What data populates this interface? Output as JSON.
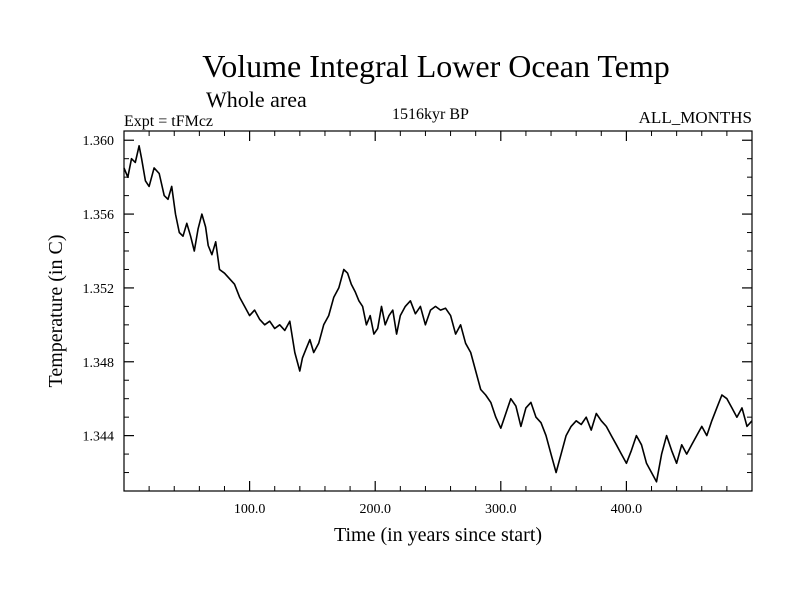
{
  "chart_data": {
    "type": "line",
    "title": "Volume Integral Lower Ocean Temp",
    "subtitle": "Whole area",
    "experiment_label": "Expt = tFMcz",
    "center_label": "1516kyr BP",
    "right_label": "ALL_MONTHS",
    "xlabel": "Time (in years since start)",
    "ylabel": "Temperature (in C)",
    "xlim": [
      0,
      500
    ],
    "ylim": [
      1.341,
      1.3605
    ],
    "x_ticks": [
      {
        "value": 100,
        "label": "100.0"
      },
      {
        "value": 200,
        "label": "200.0"
      },
      {
        "value": 300,
        "label": "300.0"
      },
      {
        "value": 400,
        "label": "400.0"
      }
    ],
    "y_ticks": [
      {
        "value": 1.36,
        "label": "1.360"
      },
      {
        "value": 1.356,
        "label": "1.356"
      },
      {
        "value": 1.352,
        "label": "1.352"
      },
      {
        "value": 1.348,
        "label": "1.348"
      },
      {
        "value": 1.344,
        "label": "1.344"
      }
    ],
    "x_minor_step": 20,
    "y_minor_step": 0.001,
    "grid": false,
    "series": [
      {
        "name": "Volume Integral Lower Ocean Temp",
        "x": [
          0,
          3,
          6,
          9,
          12,
          14,
          17,
          20,
          24,
          28,
          32,
          35,
          38,
          41,
          44,
          47,
          50,
          53,
          56,
          59,
          62,
          65,
          67,
          70,
          73,
          76,
          80,
          84,
          88,
          92,
          96,
          100,
          104,
          108,
          112,
          116,
          120,
          124,
          128,
          132,
          136,
          140,
          142,
          145,
          148,
          151,
          155,
          159,
          163,
          167,
          171,
          175,
          178,
          181,
          184,
          187,
          190,
          193,
          196,
          199,
          202,
          205,
          208,
          211,
          214,
          217,
          220,
          224,
          228,
          232,
          236,
          240,
          244,
          248,
          252,
          256,
          260,
          264,
          268,
          272,
          276,
          280,
          284,
          288,
          292,
          296,
          300,
          304,
          308,
          312,
          316,
          320,
          324,
          328,
          332,
          336,
          340,
          344,
          348,
          352,
          356,
          360,
          364,
          368,
          372,
          376,
          380,
          384,
          388,
          392,
          396,
          400,
          404,
          408,
          412,
          416,
          420,
          424,
          428,
          432,
          436,
          440,
          444,
          448,
          452,
          456,
          460,
          464,
          468,
          472,
          476,
          480,
          484,
          488,
          492,
          496,
          500
        ],
        "y": [
          1.3585,
          1.358,
          1.359,
          1.3588,
          1.3597,
          1.359,
          1.3578,
          1.3575,
          1.3585,
          1.3582,
          1.357,
          1.3568,
          1.3575,
          1.356,
          1.355,
          1.3548,
          1.3555,
          1.3548,
          1.354,
          1.3552,
          1.356,
          1.3553,
          1.3543,
          1.3538,
          1.3545,
          1.353,
          1.3528,
          1.3525,
          1.3522,
          1.3515,
          1.351,
          1.3505,
          1.3508,
          1.3503,
          1.35,
          1.3502,
          1.3498,
          1.35,
          1.3497,
          1.3502,
          1.3485,
          1.3475,
          1.3482,
          1.3487,
          1.3492,
          1.3485,
          1.349,
          1.35,
          1.3505,
          1.3515,
          1.352,
          1.353,
          1.3528,
          1.3522,
          1.3518,
          1.3513,
          1.351,
          1.35,
          1.3505,
          1.3495,
          1.3498,
          1.351,
          1.35,
          1.3505,
          1.3508,
          1.3495,
          1.3505,
          1.351,
          1.3513,
          1.3506,
          1.351,
          1.35,
          1.3508,
          1.351,
          1.3508,
          1.3509,
          1.3505,
          1.3495,
          1.35,
          1.349,
          1.3485,
          1.3475,
          1.3465,
          1.3462,
          1.3458,
          1.345,
          1.3444,
          1.3452,
          1.346,
          1.3456,
          1.3445,
          1.3455,
          1.3458,
          1.345,
          1.3447,
          1.344,
          1.343,
          1.342,
          1.343,
          1.344,
          1.3445,
          1.3448,
          1.3446,
          1.345,
          1.3443,
          1.3452,
          1.3448,
          1.3445,
          1.344,
          1.3435,
          1.343,
          1.3425,
          1.3432,
          1.344,
          1.3435,
          1.3425,
          1.342,
          1.3415,
          1.343,
          1.344,
          1.3432,
          1.3425,
          1.3435,
          1.343,
          1.3435,
          1.344,
          1.3445,
          1.344,
          1.3448,
          1.3455,
          1.3462,
          1.346,
          1.3455,
          1.345,
          1.3455,
          1.3445,
          1.3448
        ]
      }
    ]
  }
}
